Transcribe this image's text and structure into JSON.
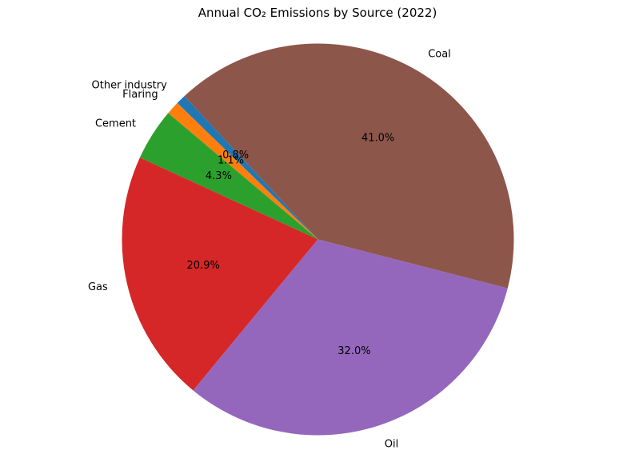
{
  "chart_data": {
    "type": "pie",
    "title": "Annual CO₂ Emissions by Source (2022)",
    "slices": [
      {
        "label": "Other industry",
        "value": 0.8,
        "pct_label": "0.8%",
        "color": "#1f77b4"
      },
      {
        "label": "Flaring",
        "value": 1.1,
        "pct_label": "1.1%",
        "color": "#ff7f0e"
      },
      {
        "label": "Cement",
        "value": 4.3,
        "pct_label": "4.3%",
        "color": "#2ca02c"
      },
      {
        "label": "Gas",
        "value": 20.9,
        "pct_label": "20.9%",
        "color": "#d62728"
      },
      {
        "label": "Oil",
        "value": 32.0,
        "pct_label": "32.0%",
        "color": "#9467bd"
      },
      {
        "label": "Coal",
        "value": 41.0,
        "pct_label": "41.0%",
        "color": "#8c564b"
      }
    ]
  }
}
